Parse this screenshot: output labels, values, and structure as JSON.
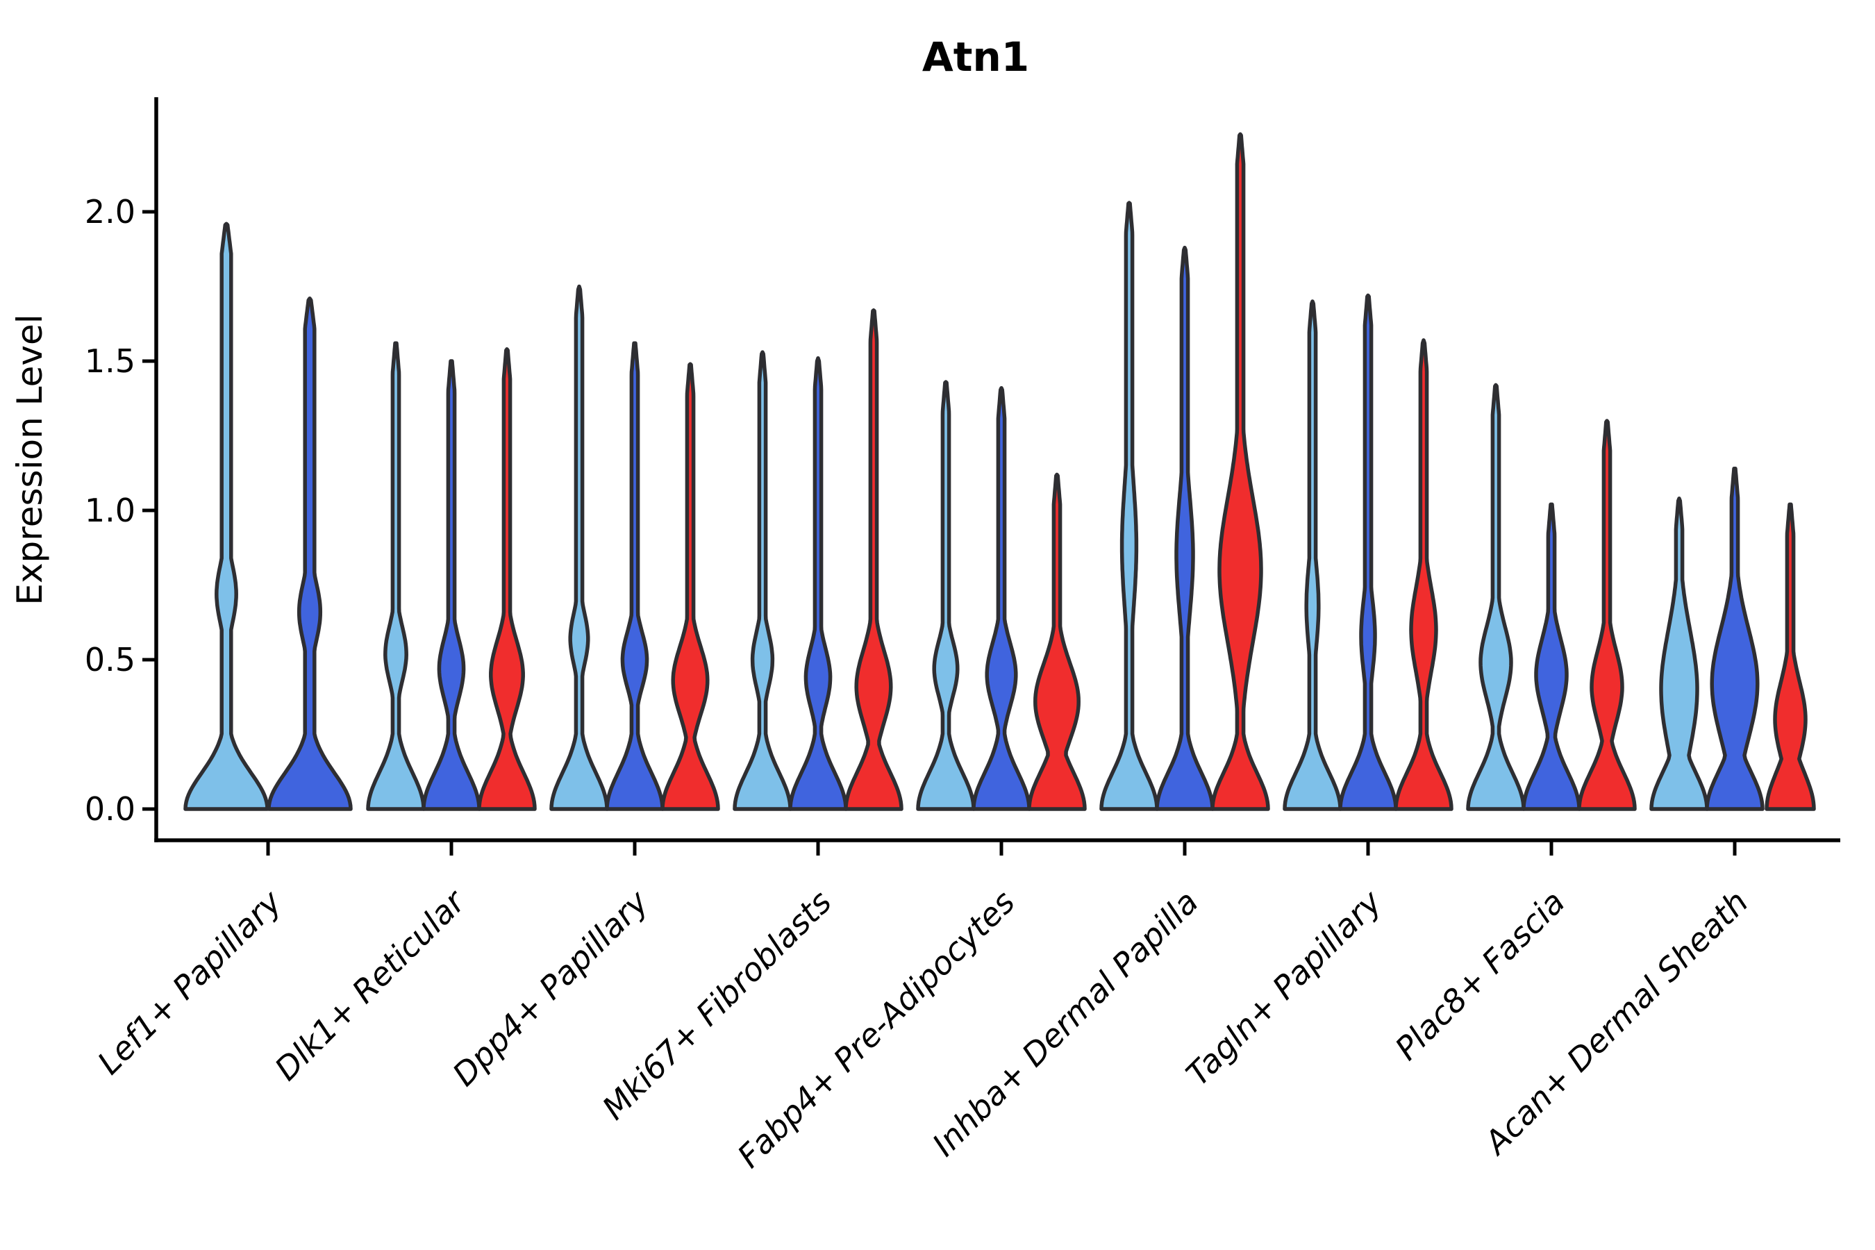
{
  "chart_data": {
    "type": "violin",
    "title": "Atn1",
    "ylabel": "Expression Level",
    "xlabel": "",
    "grid": false,
    "legend": "none",
    "ylim": [
      -0.1,
      2.38
    ],
    "yticks": [
      0.0,
      0.5,
      1.0,
      1.5,
      2.0
    ],
    "ytick_labels": [
      "0.0",
      "0.5",
      "1.0",
      "1.5",
      "2.0"
    ],
    "xtick_rotation": 45,
    "outline_color": "#2E2E32",
    "axis_color": "#000000",
    "series_colors": {
      "light_blue": "#7EC0E9",
      "blue": "#4064DE",
      "red": "#F02D2D"
    },
    "categories": [
      "Lef1+ Papillary",
      "Dlk1+ Reticular",
      "Dpp4+ Papillary",
      "Mki67+ Fibroblasts",
      "Fabp4+ Pre-Adipocytes",
      "Inhba+ Dermal Papilla",
      "Tagln+ Papillary",
      "Plac8+ Fascia",
      "Acan+ Dermal Sheath"
    ],
    "groups": [
      {
        "category": "Lef1+ Papillary",
        "violins": [
          {
            "series": "light_blue",
            "max": 1.96,
            "bulge_center": 0.72,
            "bulge_sigma": 0.14,
            "bulge_amp": 0.24
          },
          {
            "series": "blue",
            "max": 1.71,
            "bulge_center": 0.66,
            "bulge_sigma": 0.14,
            "bulge_amp": 0.26
          }
        ]
      },
      {
        "category": "Dlk1+ Reticular",
        "violins": [
          {
            "series": "light_blue",
            "max": 1.56,
            "bulge_center": 0.52,
            "bulge_sigma": 0.13,
            "bulge_amp": 0.38
          },
          {
            "series": "blue",
            "max": 1.5,
            "bulge_center": 0.47,
            "bulge_sigma": 0.14,
            "bulge_amp": 0.44
          },
          {
            "series": "red",
            "max": 1.54,
            "bulge_center": 0.45,
            "bulge_sigma": 0.16,
            "bulge_amp": 0.58
          }
        ]
      },
      {
        "category": "Dpp4+ Papillary",
        "violins": [
          {
            "series": "light_blue",
            "max": 1.75,
            "bulge_center": 0.57,
            "bulge_sigma": 0.12,
            "bulge_amp": 0.32
          },
          {
            "series": "blue",
            "max": 1.56,
            "bulge_center": 0.5,
            "bulge_sigma": 0.13,
            "bulge_amp": 0.44
          },
          {
            "series": "red",
            "max": 1.49,
            "bulge_center": 0.43,
            "bulge_sigma": 0.16,
            "bulge_amp": 0.62
          }
        ]
      },
      {
        "category": "Mki67+ Fibroblasts",
        "violins": [
          {
            "series": "light_blue",
            "max": 1.53,
            "bulge_center": 0.5,
            "bulge_sigma": 0.13,
            "bulge_amp": 0.36
          },
          {
            "series": "blue",
            "max": 1.51,
            "bulge_center": 0.44,
            "bulge_sigma": 0.14,
            "bulge_amp": 0.44
          },
          {
            "series": "red",
            "max": 1.67,
            "bulge_center": 0.41,
            "bulge_sigma": 0.17,
            "bulge_amp": 0.62
          }
        ]
      },
      {
        "category": "Fabp4+ Pre-Adipocytes",
        "violins": [
          {
            "series": "light_blue",
            "max": 1.43,
            "bulge_center": 0.47,
            "bulge_sigma": 0.13,
            "bulge_amp": 0.42
          },
          {
            "series": "blue",
            "max": 1.41,
            "bulge_center": 0.45,
            "bulge_sigma": 0.15,
            "bulge_amp": 0.52
          },
          {
            "series": "red",
            "max": 1.12,
            "bulge_center": 0.36,
            "bulge_sigma": 0.18,
            "bulge_amp": 0.78
          }
        ]
      },
      {
        "category": "Inhba+ Dermal Papilla",
        "violins": [
          {
            "series": "light_blue",
            "max": 2.03,
            "bulge_center": 0.88,
            "bulge_sigma": 0.3,
            "bulge_amp": 0.26
          },
          {
            "series": "blue",
            "max": 1.88,
            "bulge_center": 0.85,
            "bulge_sigma": 0.28,
            "bulge_amp": 0.3
          },
          {
            "series": "red",
            "max": 2.26,
            "bulge_center": 0.8,
            "bulge_sigma": 0.34,
            "bulge_amp": 0.75
          }
        ]
      },
      {
        "category": "Tagln+ Papillary",
        "violins": [
          {
            "series": "light_blue",
            "max": 1.7,
            "bulge_center": 0.68,
            "bulge_sigma": 0.2,
            "bulge_amp": 0.22
          },
          {
            "series": "blue",
            "max": 1.72,
            "bulge_center": 0.58,
            "bulge_sigma": 0.18,
            "bulge_amp": 0.25
          },
          {
            "series": "red",
            "max": 1.57,
            "bulge_center": 0.6,
            "bulge_sigma": 0.2,
            "bulge_amp": 0.45
          }
        ]
      },
      {
        "category": "Plac8+ Fascia",
        "violins": [
          {
            "series": "light_blue",
            "max": 1.42,
            "bulge_center": 0.49,
            "bulge_sigma": 0.17,
            "bulge_amp": 0.55
          },
          {
            "series": "blue",
            "max": 1.02,
            "bulge_center": 0.45,
            "bulge_sigma": 0.17,
            "bulge_amp": 0.55
          },
          {
            "series": "red",
            "max": 1.3,
            "bulge_center": 0.41,
            "bulge_sigma": 0.17,
            "bulge_amp": 0.55
          }
        ]
      },
      {
        "category": "Acan+ Dermal Sheath",
        "violins": [
          {
            "series": "light_blue",
            "max": 1.04,
            "bulge_center": 0.4,
            "bulge_sigma": 0.28,
            "bulge_amp": 0.65
          },
          {
            "series": "blue",
            "max": 1.14,
            "bulge_center": 0.42,
            "bulge_sigma": 0.26,
            "bulge_amp": 0.82
          },
          {
            "series": "red",
            "max": 1.02,
            "bulge_center": 0.3,
            "bulge_sigma": 0.18,
            "bulge_amp": 0.55,
            "base_amp": 0.85
          }
        ]
      }
    ]
  }
}
